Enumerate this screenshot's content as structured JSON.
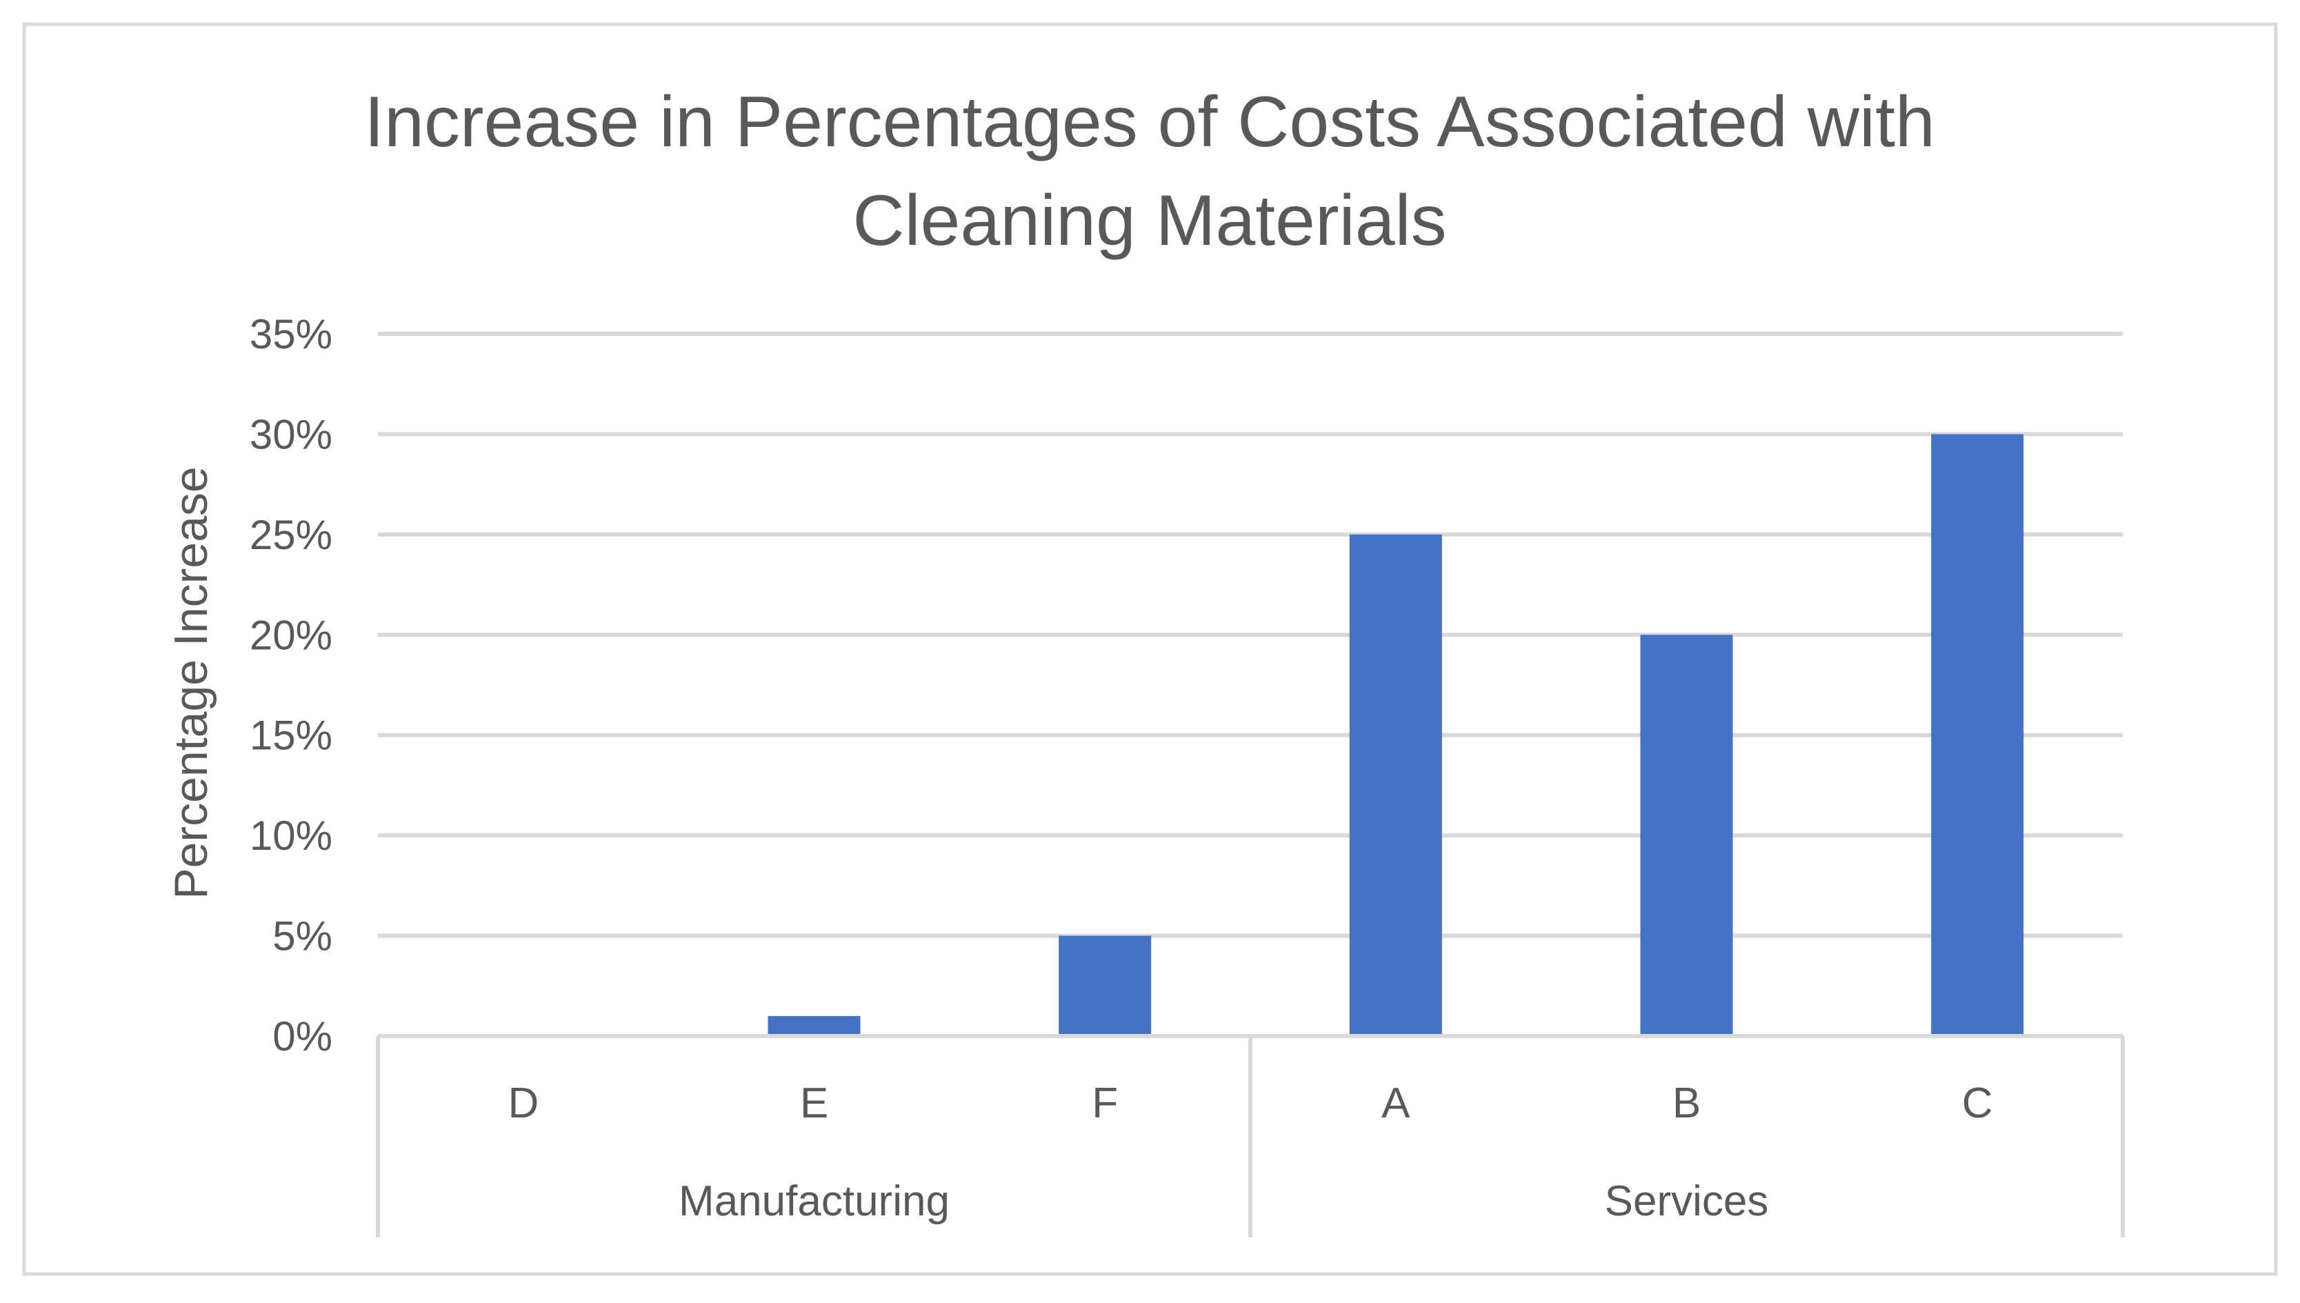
{
  "chart_data": {
    "type": "bar",
    "title": "Increase in Percentages of Costs Associated with Cleaning Materials",
    "title_lines": [
      "Increase in Percentages of Costs Associated with",
      "Cleaning Materials"
    ],
    "xlabel": "",
    "ylabel": "Percentage Increase",
    "ylim": [
      0,
      35
    ],
    "yticks": [
      0,
      5,
      10,
      15,
      20,
      25,
      30,
      35
    ],
    "ytick_labels": [
      "0%",
      "5%",
      "10%",
      "15%",
      "20%",
      "25%",
      "30%",
      "35%"
    ],
    "categories": [
      "D",
      "E",
      "F",
      "A",
      "B",
      "C"
    ],
    "values": [
      0,
      1,
      5,
      25,
      20,
      30
    ],
    "groups": [
      {
        "name": "Manufacturing",
        "categories": [
          "D",
          "E",
          "F"
        ]
      },
      {
        "name": "Services",
        "categories": [
          "A",
          "B",
          "C"
        ]
      }
    ],
    "grid": true,
    "legend": "none",
    "colors": {
      "bar": "#4472C4",
      "grid": "#D9D9D9",
      "text": "#595959",
      "frame": "#D9D9D9"
    }
  }
}
